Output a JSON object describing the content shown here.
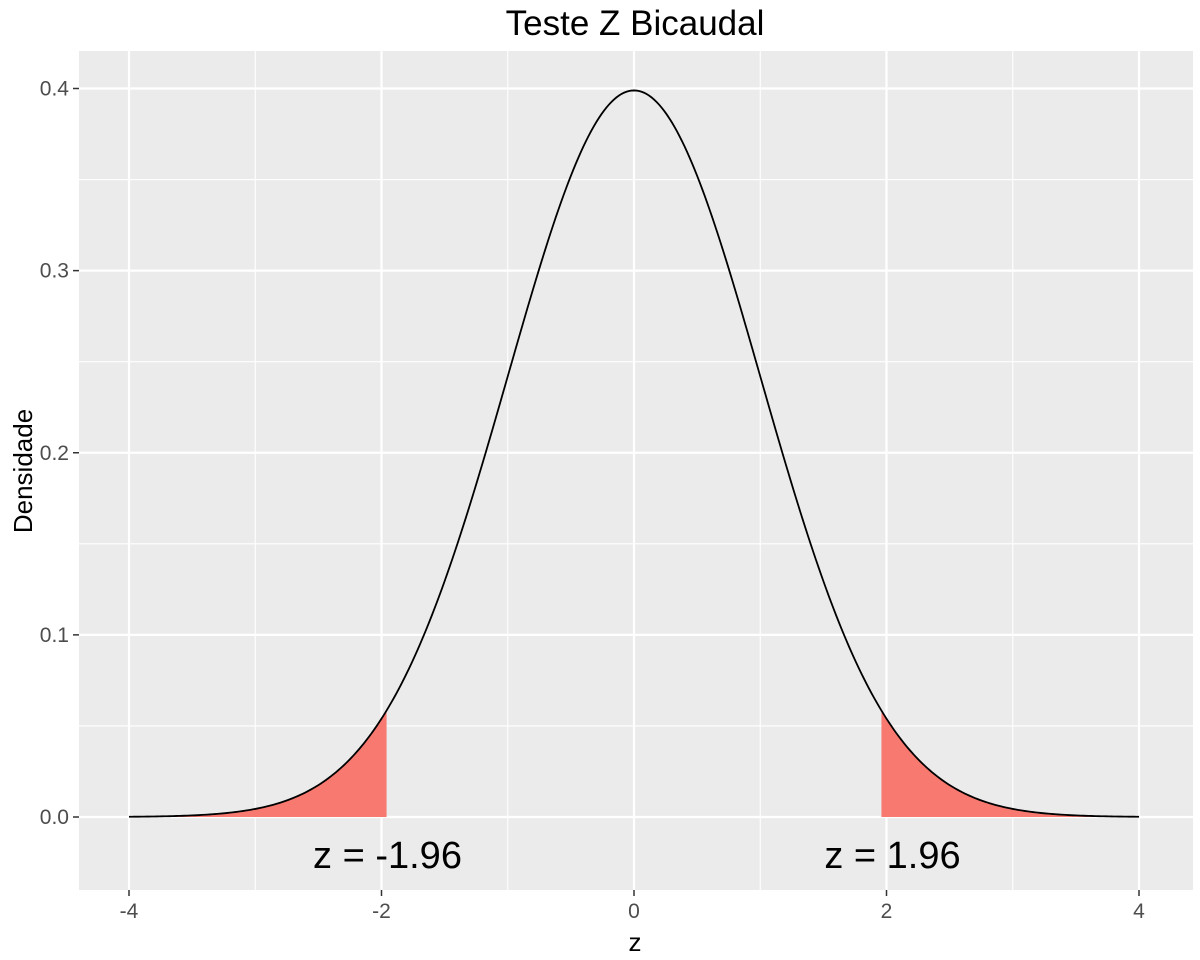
{
  "chart_data": {
    "type": "area",
    "title": "Teste Z Bicaudal",
    "xlabel": "z",
    "ylabel": "Densidade",
    "xlim": [
      -4,
      4
    ],
    "ylim": [
      0,
      0.4
    ],
    "x_ticks": [
      -4,
      -2,
      0,
      2,
      4
    ],
    "x_tick_labels": [
      "-4",
      "-2",
      "0",
      "2",
      "4"
    ],
    "y_ticks": [
      0.0,
      0.1,
      0.2,
      0.3,
      0.4
    ],
    "y_tick_labels": [
      "0.0",
      "0.1",
      "0.2",
      "0.3",
      "0.4"
    ],
    "grid": true,
    "curve": {
      "distribution": "standard normal density",
      "mean": 0,
      "sd": 1,
      "x_range": [
        -4,
        4
      ],
      "color": "#000000"
    },
    "shaded_regions": [
      {
        "from": -4,
        "to": -1.96,
        "color": "#f8766d"
      },
      {
        "from": 1.96,
        "to": 4,
        "color": "#f8766d"
      }
    ],
    "annotations": [
      {
        "x": -2,
        "y": -0.021,
        "text": "z = -1.96"
      },
      {
        "x": 2,
        "y": -0.021,
        "text": "z = 1.96"
      }
    ],
    "colors": {
      "panel_background": "#ebebeb",
      "grid": "#ffffff",
      "shade": "#f8766d",
      "line": "#000000"
    }
  }
}
